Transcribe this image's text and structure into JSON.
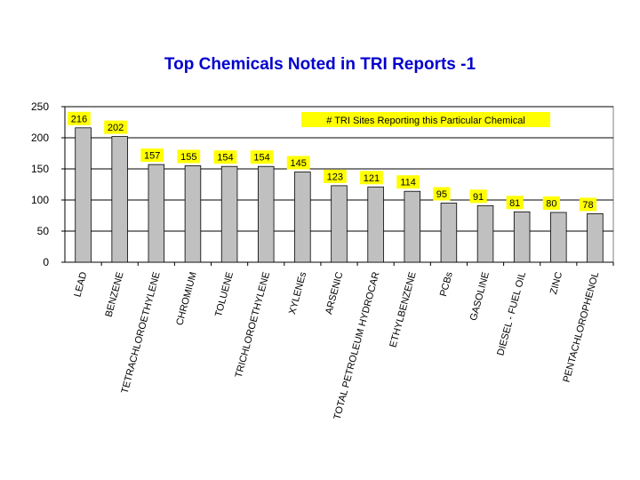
{
  "chart_data": {
    "type": "bar",
    "title": "Top Chemicals Noted in TRI Reports -1",
    "xlabel": "",
    "ylabel": "",
    "ylim": [
      0,
      250
    ],
    "yticks": [
      0,
      50,
      100,
      150,
      200,
      250
    ],
    "grid": true,
    "legend_placement": "top-right",
    "categories": [
      "LEAD",
      "BENZENE",
      "TETRACHLOROETHYLENE",
      "CHROMIUM",
      "TOLUENE",
      "TRICHLOROETHYLENE",
      "XYLENEs",
      "ARSENIC",
      "TOTAL PETROLEUM HYDROCAR",
      "ETHYLBENZENE",
      "PCBs",
      "GASOLINE",
      "DIESEL - FUEL OIL",
      "ZINC",
      "PENTACHLOROPHENOL"
    ],
    "series": [
      {
        "name": "# TRI Sites Reporting this Particular Chemical",
        "values": [
          216,
          202,
          157,
          155,
          154,
          154,
          145,
          123,
          121,
          114,
          95,
          91,
          81,
          80,
          78
        ]
      }
    ]
  },
  "colors": {
    "title": "#0000cc",
    "bar_fill": "#c0c0c0",
    "bar_stroke": "#000000",
    "label_bg": "#ffff00",
    "grid": "#000000"
  }
}
